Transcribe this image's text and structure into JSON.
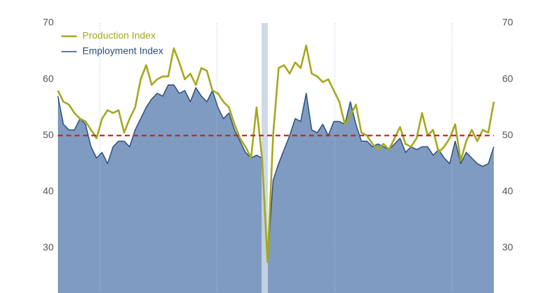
{
  "chart_data": {
    "type": "line-area",
    "series": [
      {
        "name": "Production Index",
        "color": "#a5a81e",
        "style": "line",
        "values": [
          58,
          56,
          55.5,
          54,
          53,
          52.5,
          51,
          49.5,
          53,
          54.5,
          54,
          54.5,
          50.5,
          53,
          55,
          60,
          62.5,
          59,
          60,
          60.5,
          60.5,
          65.5,
          63,
          60,
          61,
          59,
          62,
          61.5,
          58,
          57.5,
          56,
          55,
          52,
          49.5,
          48,
          46,
          55,
          46,
          27.5,
          50,
          62,
          62.5,
          61,
          63,
          62,
          66,
          61,
          60.5,
          59.5,
          60,
          58,
          56,
          52,
          53.5,
          55.5,
          50.5,
          50,
          48.5,
          47.5,
          48.5,
          47.5,
          49.5,
          51.5,
          48.5,
          48,
          49.5,
          54,
          50,
          51,
          47,
          48,
          49.5,
          52,
          45.5,
          49,
          51,
          49,
          51,
          50.5,
          56
        ]
      },
      {
        "name": "Employment Index",
        "color": "#2c4f7c",
        "fill": "#7f9bc1",
        "style": "area",
        "values": [
          57,
          52,
          51,
          51,
          53,
          52,
          48,
          46,
          47,
          45,
          48,
          49,
          49,
          48,
          51,
          53,
          55,
          56.5,
          57.5,
          57,
          59,
          59,
          57.5,
          58,
          56,
          58.5,
          57,
          56,
          58,
          55,
          53,
          54,
          51,
          49,
          47,
          46,
          46.5,
          46,
          28,
          42,
          45,
          47.5,
          50,
          53,
          52.5,
          57.5,
          51,
          50.5,
          52,
          50,
          52.5,
          52.5,
          52,
          56,
          52,
          49,
          49,
          48,
          48.5,
          48,
          47.5,
          48.5,
          49.5,
          47,
          48,
          47.5,
          48,
          48,
          46.5,
          47.5,
          46,
          45,
          49,
          45,
          47,
          46,
          45,
          44.5,
          45,
          48
        ]
      }
    ],
    "ylim": [
      22,
      70
    ],
    "yticks": [
      30,
      40,
      50,
      60,
      70
    ],
    "y2lim": [
      22,
      70
    ],
    "y2ticks": [
      30,
      40,
      50,
      60,
      70
    ],
    "reference_line": {
      "value": 50,
      "color": "#cc2222"
    },
    "legend": "top-left"
  }
}
